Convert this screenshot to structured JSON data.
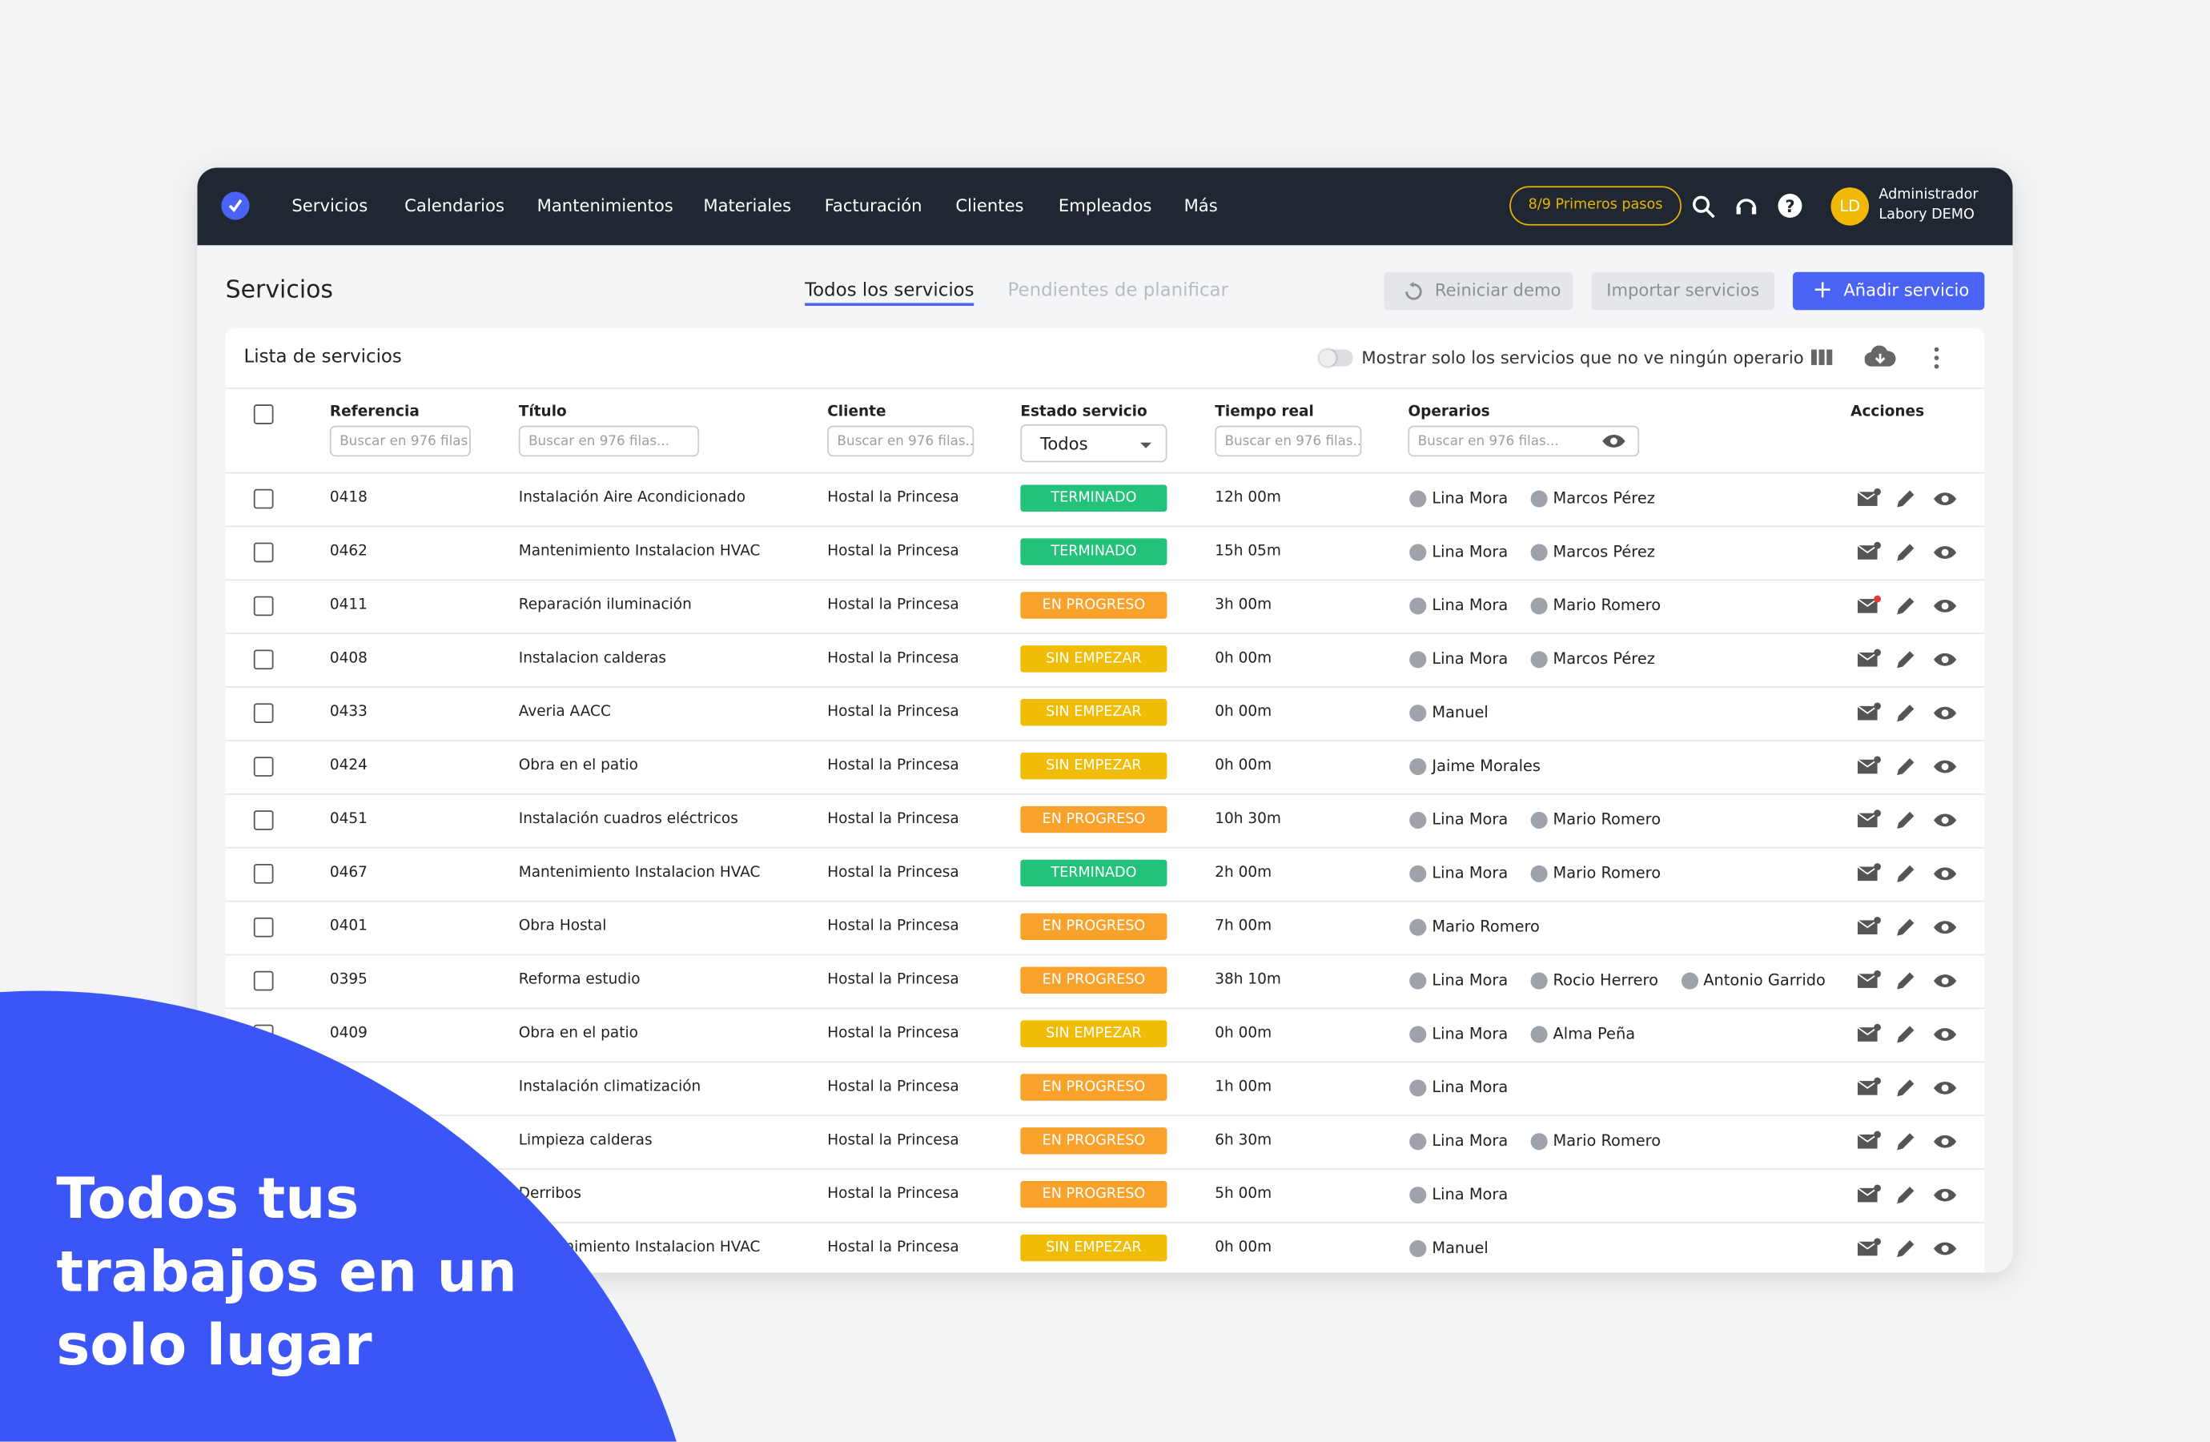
{
  "nav": {
    "items": [
      "Servicios",
      "Calendarios",
      "Mantenimientos",
      "Materiales",
      "Facturación",
      "Clientes",
      "Empleados",
      "Más"
    ],
    "onboarding": "8/9 Primeros pasos",
    "avatar": "LD",
    "user_role": "Administrador",
    "user_name": "Labory DEMO"
  },
  "page": {
    "title": "Servicios",
    "tabs": [
      "Todos los servicios",
      "Pendientes de planificar"
    ],
    "buttons": [
      "Reiniciar demo",
      "Importar servicios",
      "Añadir servicio"
    ]
  },
  "list": {
    "title": "Lista de servicios",
    "toggle_label": "Mostrar solo los servicios que no ve ningún operario"
  },
  "table": {
    "columns": [
      "Referencia",
      "Título",
      "Cliente",
      "Estado servicio",
      "Tiempo real",
      "Operarios",
      "Acciones"
    ],
    "search_placeholder": "Buscar en 976 filas...",
    "status_filter": "Todos",
    "status_colors": {
      "TERMINADO": "#22c27a",
      "EN PROGRESO": "#f8a22c",
      "SIN EMPEZAR": "#f0bc05"
    },
    "rows": [
      {
        "ref": "0418",
        "title": "Instalación Aire Acondicionado",
        "client": "Hostal la Princesa",
        "status": "TERMINADO",
        "time": "12h 00m",
        "operators": [
          "Lina Mora",
          "Marcos Pérez"
        ]
      },
      {
        "ref": "0462",
        "title": "Mantenimiento Instalacion HVAC",
        "client": "Hostal la Princesa",
        "status": "TERMINADO",
        "time": "15h 05m",
        "operators": [
          "Lina Mora",
          "Marcos Pérez"
        ]
      },
      {
        "ref": "0411",
        "title": "Reparación iluminación",
        "client": "Hostal la Princesa",
        "status": "EN PROGRESO",
        "time": "3h 00m",
        "operators": [
          "Lina Mora",
          "Mario Romero"
        ],
        "unread": true
      },
      {
        "ref": "0408",
        "title": "Instalacion calderas",
        "client": "Hostal la Princesa",
        "status": "SIN EMPEZAR",
        "time": "0h 00m",
        "operators": [
          "Lina Mora",
          "Marcos Pérez"
        ]
      },
      {
        "ref": "0433",
        "title": "Averia AACC",
        "client": "Hostal la Princesa",
        "status": "SIN EMPEZAR",
        "time": "0h 00m",
        "operators": [
          "Manuel"
        ]
      },
      {
        "ref": "0424",
        "title": "Obra en el patio",
        "client": "Hostal la Princesa",
        "status": "SIN EMPEZAR",
        "time": "0h 00m",
        "operators": [
          "Jaime Morales"
        ]
      },
      {
        "ref": "0451",
        "title": "Instalación cuadros eléctricos",
        "client": "Hostal la Princesa",
        "status": "EN PROGRESO",
        "time": "10h 30m",
        "operators": [
          "Lina Mora",
          "Mario Romero"
        ]
      },
      {
        "ref": "0467",
        "title": "Mantenimiento Instalacion HVAC",
        "client": "Hostal la Princesa",
        "status": "TERMINADO",
        "time": "2h 00m",
        "operators": [
          "Lina Mora",
          "Mario Romero"
        ]
      },
      {
        "ref": "0401",
        "title": "Obra Hostal",
        "client": "Hostal la Princesa",
        "status": "EN PROGRESO",
        "time": "7h 00m",
        "operators": [
          "Mario Romero"
        ]
      },
      {
        "ref": "0395",
        "title": "Reforma estudio",
        "client": "Hostal la Princesa",
        "status": "EN PROGRESO",
        "time": "38h 10m",
        "operators": [
          "Lina Mora",
          "Rocio Herrero",
          "Antonio Garrido"
        ]
      },
      {
        "ref": "0409",
        "title": "Obra en el patio",
        "client": "Hostal la Princesa",
        "status": "SIN EMPEZAR",
        "time": "0h 00m",
        "operators": [
          "Lina Mora",
          "Alma Peña"
        ]
      },
      {
        "ref": null,
        "title": "Instalación climatización",
        "client": "Hostal la Princesa",
        "status": "EN PROGRESO",
        "time": "1h 00m",
        "operators": [
          "Lina Mora"
        ]
      },
      {
        "ref": null,
        "title": "Limpieza calderas",
        "client": "Hostal la Princesa",
        "status": "EN PROGRESO",
        "time": "6h 30m",
        "operators": [
          "Lina Mora",
          "Mario Romero"
        ]
      },
      {
        "ref": null,
        "title": "Derribos",
        "client": "Hostal la Princesa",
        "status": "EN PROGRESO",
        "time": "5h 00m",
        "operators": [
          "Lina Mora"
        ]
      },
      {
        "ref": null,
        "title": "Mantenimiento Instalacion HVAC",
        "client": "Hostal la Princesa",
        "status": "SIN EMPEZAR",
        "time": "0h 00m",
        "operators": [
          "Manuel"
        ]
      }
    ]
  },
  "promo": {
    "lines": [
      "Todos tus",
      "trabajos en un",
      "solo lugar"
    ]
  }
}
